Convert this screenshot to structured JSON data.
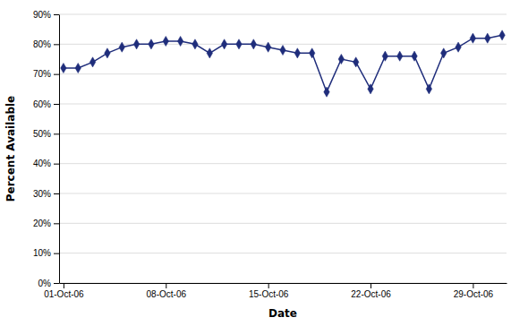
{
  "chart_data": {
    "type": "line",
    "xlabel": "Date",
    "ylabel": "Percent Available",
    "x": [
      0,
      1,
      2,
      3,
      4,
      5,
      6,
      7,
      8,
      9,
      10,
      11,
      12,
      13,
      14,
      15,
      16,
      17,
      18,
      19,
      20,
      21,
      22,
      23,
      24,
      25,
      26,
      27,
      28,
      29,
      30
    ],
    "values": [
      0.72,
      0.72,
      0.74,
      0.77,
      0.79,
      0.8,
      0.8,
      0.81,
      0.81,
      0.8,
      0.77,
      0.8,
      0.8,
      0.8,
      0.79,
      0.78,
      0.77,
      0.77,
      0.64,
      0.75,
      0.74,
      0.65,
      0.76,
      0.76,
      0.76,
      0.65,
      0.77,
      0.79,
      0.82,
      0.82,
      0.83
    ],
    "color": "#1F2D7B",
    "marker": "diamond",
    "xlim": [
      -0.3,
      30.3
    ],
    "xticks": [
      {
        "value": 0,
        "label": "01-Oct-06"
      },
      {
        "value": 7,
        "label": "08-Oct-06"
      },
      {
        "value": 14,
        "label": "15-Oct-06"
      },
      {
        "value": 21,
        "label": "22-Oct-06"
      },
      {
        "value": 28,
        "label": "29-Oct-06"
      }
    ],
    "ylim": [
      0.0,
      0.9
    ],
    "yticks": [
      {
        "value": 0.0,
        "label": "0%"
      },
      {
        "value": 0.1,
        "label": "10%"
      },
      {
        "value": 0.2,
        "label": "20%"
      },
      {
        "value": 0.3,
        "label": "30%"
      },
      {
        "value": 0.4,
        "label": "40%"
      },
      {
        "value": 0.5,
        "label": "50%"
      },
      {
        "value": 0.6,
        "label": "60%"
      },
      {
        "value": 0.7,
        "label": "70%"
      },
      {
        "value": 0.8,
        "label": "80%"
      },
      {
        "value": 0.9,
        "label": "90%"
      }
    ],
    "grid": true
  }
}
